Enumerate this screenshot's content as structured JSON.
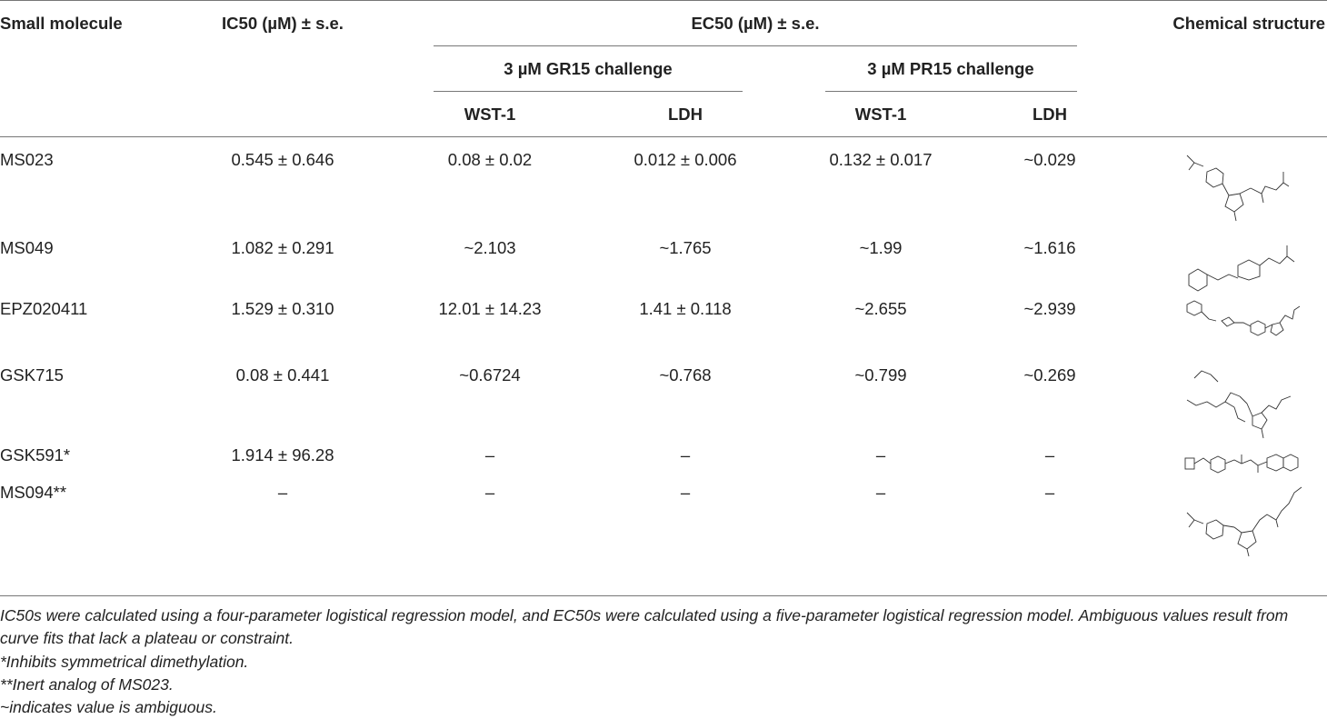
{
  "table": {
    "headers": {
      "molecule": "Small molecule",
      "ic50": "IC50 (µM) ± s.e.",
      "ec50": "EC50 (µM) ± s.e.",
      "gr15": "3 µM GR15 challenge",
      "pr15": "3 µM PR15 challenge",
      "wst1_gr": "WST-1",
      "ldh_gr": "LDH",
      "wst1_pr": "WST-1",
      "ldh_pr": "LDH",
      "structure": "Chemical structure"
    },
    "rows": [
      {
        "name": "MS023",
        "ic50": "0.545 ± 0.646",
        "gr_wst1": "0.08 ± 0.02",
        "gr_ldh": "0.012 ± 0.006",
        "pr_wst1": "0.132 ± 0.017",
        "pr_ldh": "~0.029"
      },
      {
        "name": "MS049",
        "ic50": "1.082 ± 0.291",
        "gr_wst1": "~2.103",
        "gr_ldh": "~1.765",
        "pr_wst1": "~1.99",
        "pr_ldh": "~1.616"
      },
      {
        "name": "EPZ020411",
        "ic50": "1.529 ± 0.310",
        "gr_wst1": "12.01 ± 14.23",
        "gr_ldh": "1.41 ± 0.118",
        "pr_wst1": "~2.655",
        "pr_ldh": "~2.939"
      },
      {
        "name": "GSK715",
        "ic50": "0.08 ± 0.441",
        "gr_wst1": "~0.6724",
        "gr_ldh": "~0.768",
        "pr_wst1": "~0.799",
        "pr_ldh": "~0.269"
      },
      {
        "name": "GSK591*",
        "ic50": "1.914 ± 96.28",
        "gr_wst1": "–",
        "gr_ldh": "–",
        "pr_wst1": "–",
        "pr_ldh": "–"
      },
      {
        "name": "MS094**",
        "ic50": "–",
        "gr_wst1": "–",
        "gr_ldh": "–",
        "pr_wst1": "–",
        "pr_ldh": "–"
      }
    ]
  },
  "footnotes": {
    "line1": "IC50s were calculated using a four-parameter logistical regression model, and EC50s were calculated using a five-parameter logistical regression model. Ambiguous values result from",
    "line2": "curve fits that lack a plateau or constraint.",
    "note1": "*Inhibits symmetrical dimethylation.",
    "note2": "**Inert analog of MS023.",
    "note3": "~indicates value is ambiguous."
  }
}
